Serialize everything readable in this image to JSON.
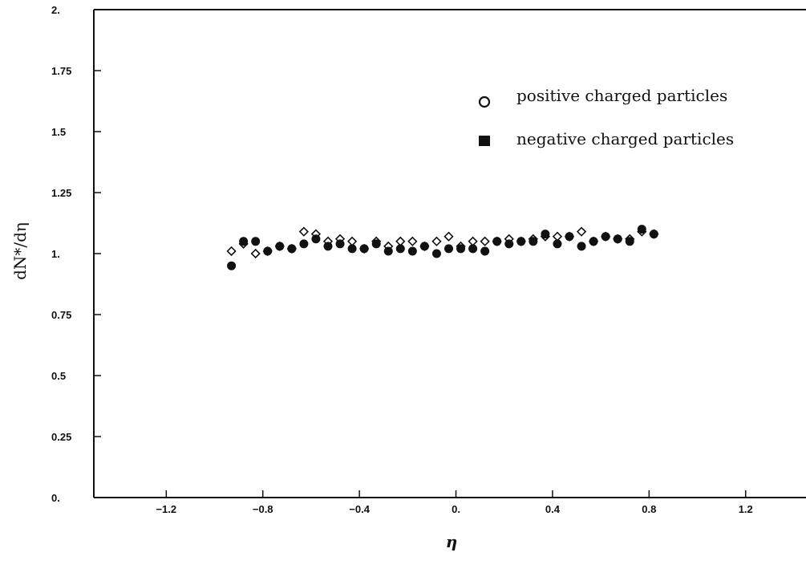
{
  "chart_data": {
    "type": "scatter",
    "xlabel": "η",
    "ylabel": "dN*/dη",
    "xlim": [
      -1.5,
      1.45
    ],
    "ylim": [
      0,
      2
    ],
    "x_ticks": [
      -1.2,
      -0.8,
      -0.4,
      0,
      0.4,
      0.8,
      1.2
    ],
    "x_tick_labels": [
      "−1.2",
      "−0.8",
      "−0.4",
      "0.",
      "0.4",
      "0.8",
      "1.2"
    ],
    "y_ticks": [
      0,
      0.25,
      0.5,
      0.75,
      1,
      1.25,
      1.5,
      1.75,
      2
    ],
    "y_tick_labels": [
      "0.",
      "0.25",
      "0.5",
      "0.75",
      "1.",
      "1.25",
      "1.5",
      "1.75",
      "2."
    ],
    "grid": false,
    "legend_position": "top-right",
    "series": [
      {
        "name": "positive charged particles",
        "marker": "open-diamond",
        "color": "#111111",
        "x": [
          -0.93,
          -0.88,
          -0.83,
          -0.78,
          -0.73,
          -0.68,
          -0.63,
          -0.58,
          -0.53,
          -0.48,
          -0.43,
          -0.38,
          -0.33,
          -0.28,
          -0.23,
          -0.18,
          -0.13,
          -0.08,
          -0.03,
          0.02,
          0.07,
          0.12,
          0.17,
          0.22,
          0.27,
          0.32,
          0.37,
          0.42,
          0.47,
          0.52,
          0.57,
          0.62,
          0.67,
          0.72,
          0.77,
          0.82
        ],
        "y": [
          1.01,
          1.04,
          1.0,
          1.01,
          1.03,
          1.02,
          1.09,
          1.08,
          1.05,
          1.06,
          1.05,
          1.02,
          1.05,
          1.03,
          1.05,
          1.05,
          1.03,
          1.05,
          1.07,
          1.03,
          1.05,
          1.05,
          1.05,
          1.06,
          1.05,
          1.06,
          1.07,
          1.07,
          1.07,
          1.09,
          1.05,
          1.07,
          1.06,
          1.06,
          1.09,
          1.08
        ]
      },
      {
        "name": "negative charged particles",
        "marker": "filled",
        "color": "#111111",
        "x": [
          -0.93,
          -0.88,
          -0.83,
          -0.78,
          -0.73,
          -0.68,
          -0.63,
          -0.58,
          -0.53,
          -0.48,
          -0.43,
          -0.38,
          -0.33,
          -0.28,
          -0.23,
          -0.18,
          -0.13,
          -0.08,
          -0.03,
          0.02,
          0.07,
          0.12,
          0.17,
          0.22,
          0.27,
          0.32,
          0.37,
          0.42,
          0.47,
          0.52,
          0.57,
          0.62,
          0.67,
          0.72,
          0.77,
          0.82
        ],
        "y": [
          0.95,
          1.05,
          1.05,
          1.01,
          1.03,
          1.02,
          1.04,
          1.06,
          1.03,
          1.04,
          1.02,
          1.02,
          1.04,
          1.01,
          1.02,
          1.01,
          1.03,
          1.0,
          1.02,
          1.02,
          1.02,
          1.01,
          1.05,
          1.04,
          1.05,
          1.05,
          1.08,
          1.04,
          1.07,
          1.03,
          1.05,
          1.07,
          1.06,
          1.05,
          1.1,
          1.08
        ]
      }
    ]
  }
}
